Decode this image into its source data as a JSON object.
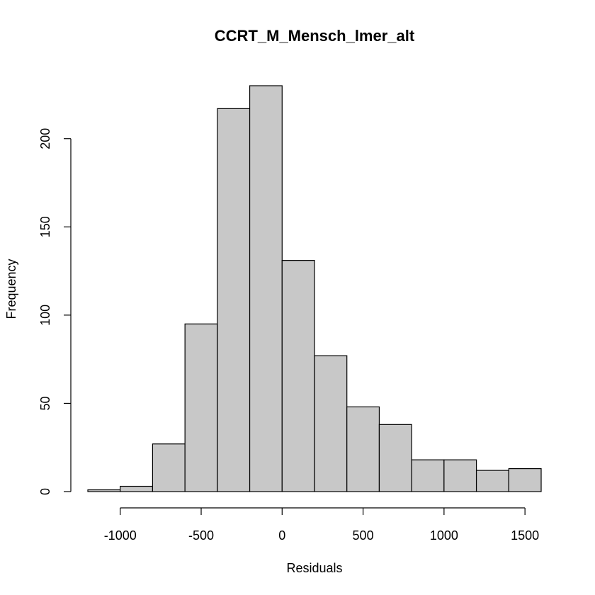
{
  "chart_data": {
    "type": "bar",
    "title": "CCRT_M_Mensch_lmer_alt",
    "xlabel": "Residuals",
    "ylabel": "Frequency",
    "bins": [
      {
        "from": -1200,
        "to": -1000,
        "count": 1
      },
      {
        "from": -1000,
        "to": -800,
        "count": 3
      },
      {
        "from": -800,
        "to": -600,
        "count": 27
      },
      {
        "from": -600,
        "to": -400,
        "count": 95
      },
      {
        "from": -400,
        "to": -200,
        "count": 217
      },
      {
        "from": -200,
        "to": 0,
        "count": 230
      },
      {
        "from": 0,
        "to": 200,
        "count": 131
      },
      {
        "from": 200,
        "to": 400,
        "count": 77
      },
      {
        "from": 400,
        "to": 600,
        "count": 48
      },
      {
        "from": 600,
        "to": 800,
        "count": 38
      },
      {
        "from": 800,
        "to": 1000,
        "count": 18
      },
      {
        "from": 1000,
        "to": 1200,
        "count": 18
      },
      {
        "from": 1200,
        "to": 1400,
        "count": 12
      },
      {
        "from": 1400,
        "to": 1600,
        "count": 13
      }
    ],
    "x_ticks": [
      -1000,
      -500,
      0,
      500,
      1000,
      1500
    ],
    "x_tick_labels": [
      "-1000",
      "-500",
      "0",
      "500",
      "1000",
      "1500"
    ],
    "y_ticks": [
      0,
      50,
      100,
      150,
      200
    ],
    "y_tick_labels": [
      "0",
      "50",
      "100",
      "150",
      "200"
    ],
    "xlim": [
      -1200,
      1600
    ],
    "ylim": [
      0,
      230
    ],
    "grid": false,
    "bar_color": "#c8c8c8"
  }
}
